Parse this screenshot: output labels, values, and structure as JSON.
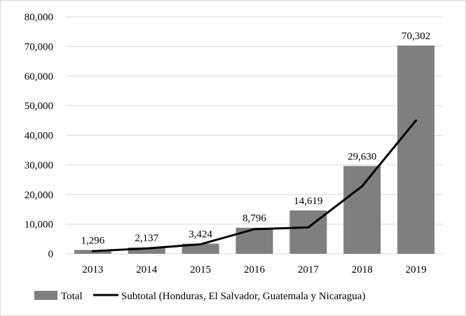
{
  "chart_data": {
    "type": "bar",
    "title": "",
    "xlabel": "",
    "ylabel": "",
    "categories": [
      "2013",
      "2014",
      "2015",
      "2016",
      "2017",
      "2018",
      "2019"
    ],
    "ylim": [
      0,
      80000
    ],
    "yticks": [
      0,
      10000,
      20000,
      30000,
      40000,
      50000,
      60000,
      70000,
      80000
    ],
    "ytick_labels": [
      "0",
      "10,000",
      "20,000",
      "30,000",
      "40,000",
      "50,000",
      "60,000",
      "70,000",
      "80,000"
    ],
    "grid": true,
    "legend_position": "bottom",
    "series": [
      {
        "name": "Total",
        "kind": "bar",
        "color": "#7f7f7f",
        "values": [
          1296,
          2137,
          3424,
          8796,
          14619,
          29630,
          70302
        ],
        "data_labels": [
          "1,296",
          "2,137",
          "3,424",
          "8,796",
          "14,619",
          "29,630",
          "70,302"
        ]
      },
      {
        "name": "Subtotal (Honduras, El Salvador, Guatemala y Nicaragua)",
        "kind": "line",
        "color": "#000000",
        "values": [
          900,
          1800,
          3200,
          8300,
          8900,
          22800,
          45000
        ]
      }
    ]
  }
}
